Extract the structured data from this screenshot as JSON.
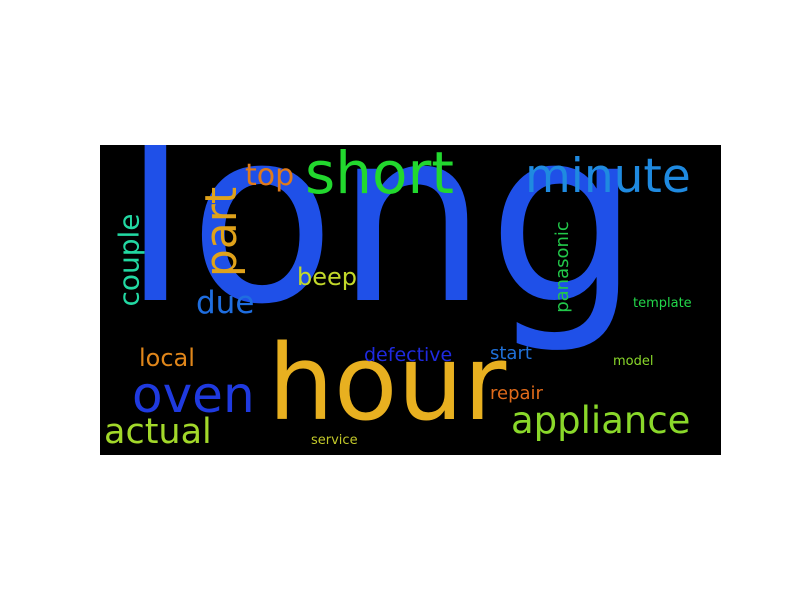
{
  "wordcloud": {
    "background": "#000000",
    "words": {
      "long": {
        "text": "long",
        "color": "#1f50e8"
      },
      "hour": {
        "text": "hour",
        "color": "#e8b020"
      },
      "short": {
        "text": "short",
        "color": "#22d82e"
      },
      "minute": {
        "text": "minute",
        "color": "#1f8ae0"
      },
      "part": {
        "text": "part",
        "color": "#e0a21a"
      },
      "top": {
        "text": "top",
        "color": "#e07a1a"
      },
      "oven": {
        "text": "oven",
        "color": "#1f3ae0"
      },
      "appliance": {
        "text": "appliance",
        "color": "#8ad82a"
      },
      "actual": {
        "text": "actual",
        "color": "#a2d82a"
      },
      "couple": {
        "text": "couple",
        "color": "#22d8a2"
      },
      "due": {
        "text": "due",
        "color": "#1f6ee0"
      },
      "beep": {
        "text": "beep",
        "color": "#c2d82a"
      },
      "local": {
        "text": "local",
        "color": "#e0861a"
      },
      "defective": {
        "text": "defective",
        "color": "#1f2ae0"
      },
      "start": {
        "text": "start",
        "color": "#1f70d8"
      },
      "repair": {
        "text": "repair",
        "color": "#e06a1a"
      },
      "panasonic": {
        "text": "panasonic",
        "color": "#22c84a"
      },
      "template": {
        "text": "template",
        "color": "#22d84a"
      },
      "model": {
        "text": "model",
        "color": "#8ad82a"
      },
      "service": {
        "text": "service",
        "color": "#c2c82a"
      }
    }
  }
}
